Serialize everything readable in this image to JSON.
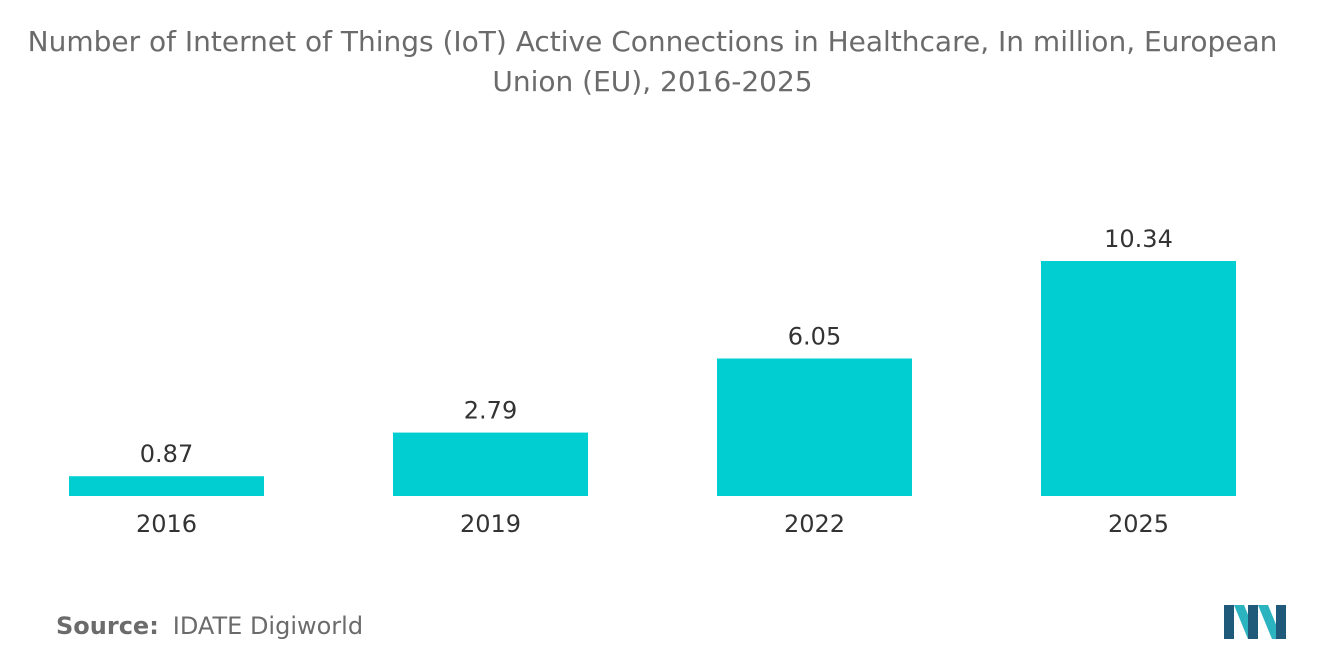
{
  "chart_data": {
    "type": "bar",
    "title_lines": [
      "Number of Internet of Things (IoT) Active Connections in Healthcare, In million, European",
      "Union (EU), 2016-2025"
    ],
    "categories": [
      "2016",
      "2019",
      "2022",
      "2025"
    ],
    "values": [
      0.87,
      2.79,
      6.05,
      10.34
    ],
    "value_labels": [
      "0.87",
      "2.79",
      "6.05",
      "10.34"
    ],
    "xlabel": "",
    "ylabel": "",
    "ylim": [
      0,
      10.34
    ],
    "grid": false,
    "legend": "none",
    "bar_color": "#00ced1"
  },
  "source": {
    "label": "Source:",
    "text": "IDATE Digiworld"
  },
  "logo": {
    "icon": "mordor-intelligence-logo-icon",
    "colors": [
      "#1f5a7a",
      "#2bb3c0"
    ]
  }
}
